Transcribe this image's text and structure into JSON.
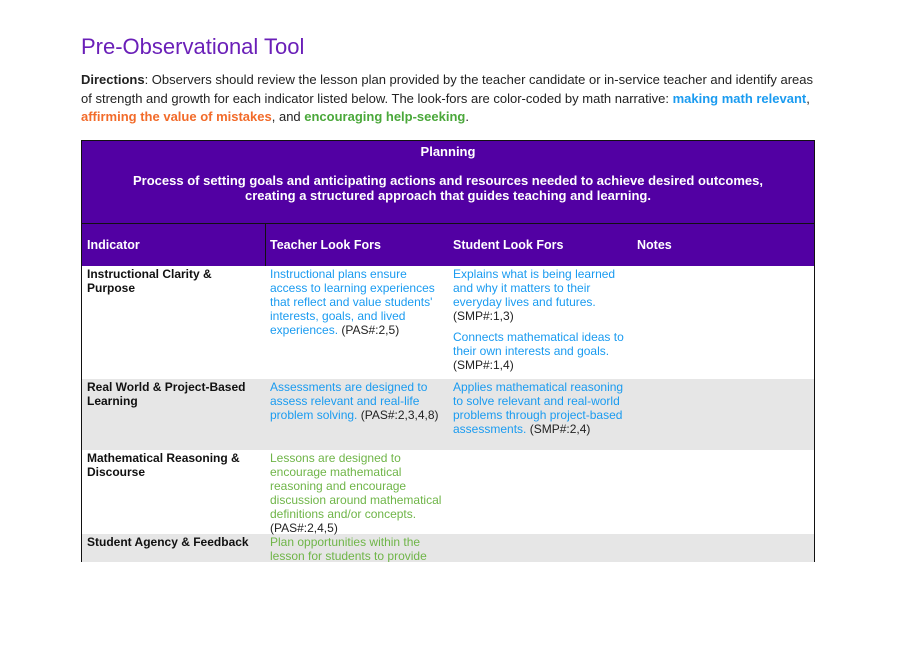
{
  "title": "Pre-Observational Tool",
  "directions": {
    "label": "Directions",
    "text": ": Observers should review the lesson plan provided by the teacher candidate or in-service teacher and identify areas of strength and growth for each indicator listed below. The look-fors are color-coded by math narrative: ",
    "n1": "making math relevant",
    "sep1": ", ",
    "n2": "affirming the value of mistakes",
    "sep2": ", and ",
    "n3": "encouraging help-seeking",
    "end": "."
  },
  "colors": {
    "purple": "#5200a3",
    "blue": "#1a9bf0",
    "orange": "#f26b2a",
    "green": "#4aa83a"
  },
  "table": {
    "section": "Planning",
    "description": "Process of setting goals and anticipating actions and resources needed to achieve desired outcomes, creating a structured approach that guides teaching and learning.",
    "headers": [
      "Indicator",
      "Teacher Look Fors",
      "Student Look Fors",
      "Notes"
    ],
    "rows": [
      {
        "indicator": "Instructional Clarity & Purpose",
        "teacher": [
          {
            "text": "Instructional plans ensure access to learning experiences that reflect and value students' interests, goals, and lived experiences.",
            "ref": " (PAS#:2,5)"
          }
        ],
        "student": [
          {
            "text": "Explains what is being learned and why it matters to their everyday lives and futures.",
            "ref": " (SMP#:1,3)"
          },
          {
            "text": "Connects mathematical ideas to their own interests and goals.",
            "ref": " (SMP#:1,4)"
          }
        ]
      },
      {
        "indicator": "Real World & Project-Based Learning",
        "teacher": [
          {
            "text": "Assessments are designed to assess relevant and real-life problem solving.",
            "ref": " (PAS#:2,3,4,8)"
          }
        ],
        "student": [
          {
            "text": "Applies mathematical reasoning to solve relevant and real-world problems through project-based assessments.",
            "ref": " (SMP#:2,4)"
          }
        ]
      },
      {
        "indicator": "Mathematical Reasoning & Discourse",
        "teacher": [
          {
            "text": "Lessons are designed to encourage mathematical reasoning and encourage discussion around mathematical definitions and/or concepts.",
            "ref": " (PAS#:2,4,5)"
          }
        ],
        "student": []
      },
      {
        "indicator": "Student Agency & Feedback",
        "teacher": [
          {
            "text": "Plan opportunities within the lesson for students to provide",
            "ref": ""
          }
        ],
        "student": []
      }
    ]
  }
}
